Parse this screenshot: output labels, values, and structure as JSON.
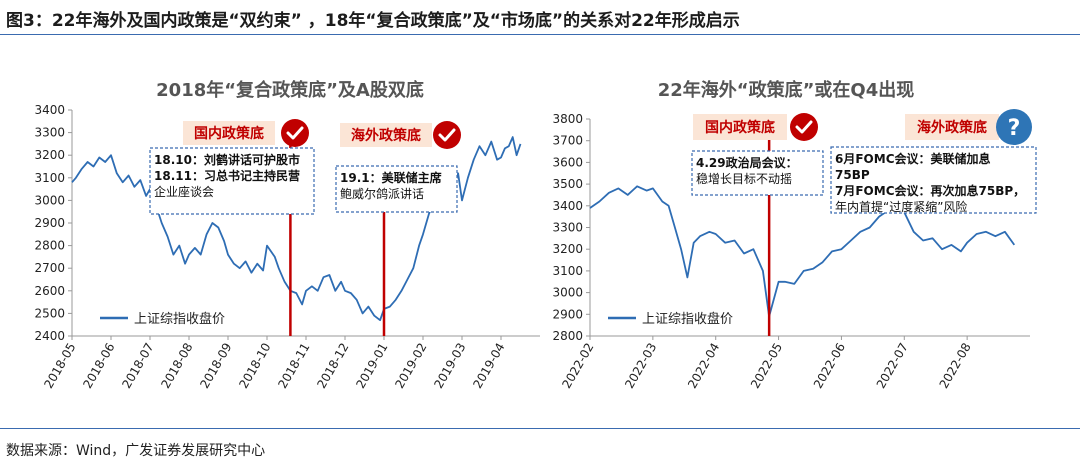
{
  "figure_title": "图3：22年海外及国内政策是“双约束” ，18年“复合政策底”及“市场底”的关系对22年形成启示",
  "source": "数据来源：Wind，广发证券发展研究中心",
  "colors": {
    "line": "#2e6db4",
    "red": "#c00000",
    "label_bg": "#fbe5d6",
    "axis": "#999999",
    "dash": "#3a6bb0",
    "q": "#2e75b6"
  },
  "chart_data": [
    {
      "type": "line",
      "title": "2018年“复合政策底”及A股双底",
      "xlabel": "",
      "ylabel": "",
      "ylim": [
        2400,
        3400
      ],
      "yticks": [
        2400,
        2500,
        2600,
        2700,
        2800,
        2900,
        3000,
        3100,
        3200,
        3300,
        3400
      ],
      "xlim": [
        0,
        12
      ],
      "x_tick_labels": [
        "2018-05",
        "2018-06",
        "2018-07",
        "2018-08",
        "2018-09",
        "2018-10",
        "2018-11",
        "2018-12",
        "2019-01",
        "2019-02",
        "2019-03",
        "2019-04"
      ],
      "series": [
        {
          "name": "上证综指收盘价",
          "x": [
            0,
            0.1,
            0.25,
            0.4,
            0.55,
            0.7,
            0.85,
            1,
            1.15,
            1.3,
            1.45,
            1.6,
            1.75,
            1.9,
            2,
            2.15,
            2.3,
            2.45,
            2.6,
            2.75,
            2.9,
            3,
            3.15,
            3.3,
            3.45,
            3.6,
            3.75,
            3.9,
            4,
            4.15,
            4.3,
            4.45,
            4.6,
            4.75,
            4.9,
            5,
            5.2,
            5.3,
            5.45,
            5.6,
            5.75,
            5.9,
            6,
            6.15,
            6.3,
            6.45,
            6.6,
            6.75,
            6.9,
            7,
            7.15,
            7.3,
            7.45,
            7.6,
            7.75,
            7.9,
            8,
            8.15,
            8.3,
            8.45,
            8.6,
            8.75,
            8.9,
            9,
            9.15,
            9.3,
            9.45,
            9.6,
            9.75,
            9.9,
            10,
            10.15,
            10.3,
            10.45,
            10.6,
            10.75,
            10.9,
            11,
            11.1,
            11.2,
            11.3,
            11.4,
            11.5
          ],
          "values": [
            3080,
            3100,
            3140,
            3170,
            3150,
            3190,
            3170,
            3200,
            3120,
            3080,
            3110,
            3060,
            3090,
            3020,
            3050,
            2980,
            2900,
            2840,
            2760,
            2800,
            2720,
            2760,
            2790,
            2760,
            2850,
            2900,
            2880,
            2820,
            2760,
            2720,
            2700,
            2730,
            2680,
            2720,
            2690,
            2800,
            2750,
            2700,
            2640,
            2600,
            2590,
            2540,
            2600,
            2620,
            2600,
            2660,
            2670,
            2600,
            2640,
            2600,
            2590,
            2560,
            2500,
            2530,
            2490,
            2470,
            2520,
            2530,
            2560,
            2600,
            2650,
            2700,
            2800,
            2850,
            2940,
            3000,
            3060,
            2960,
            3040,
            3120,
            3000,
            3100,
            3180,
            3240,
            3200,
            3260,
            3180,
            3190,
            3230,
            3240,
            3280,
            3200,
            3250
          ]
        }
      ],
      "policy_lines": [
        {
          "x": 5.6,
          "ymin": 2400,
          "ymax": 3300,
          "label": "国内政策底"
        },
        {
          "x": 8.0,
          "ymin": 2400,
          "ymax": 3100,
          "label": "海外政策底"
        }
      ],
      "annotations": [
        {
          "lines": [
            "18.10：刘鹤讲话可护股市",
            "18.11：习总书记主持民营",
            "企业座谈会"
          ]
        },
        {
          "lines": [
            "19.1：美联储主席",
            "鲍威尔鸽派讲话"
          ]
        }
      ]
    },
    {
      "type": "line",
      "title": "22年海外“政策底”或在Q4出现",
      "xlabel": "",
      "ylabel": "",
      "ylim": [
        2800,
        3800
      ],
      "yticks": [
        2800,
        2900,
        3000,
        3100,
        3200,
        3300,
        3400,
        3500,
        3600,
        3700,
        3800
      ],
      "xlim": [
        0,
        7
      ],
      "x_tick_labels": [
        "2022-02",
        "2022-03",
        "2022-04",
        "2022-05",
        "2022-06",
        "2022-07",
        "2022-08"
      ],
      "series": [
        {
          "name": "上证综指收盘价",
          "x": [
            0,
            0.15,
            0.3,
            0.45,
            0.6,
            0.75,
            0.9,
            1,
            1.15,
            1.25,
            1.35,
            1.45,
            1.55,
            1.65,
            1.75,
            1.9,
            2,
            2.15,
            2.3,
            2.45,
            2.6,
            2.75,
            2.85,
            3,
            3.1,
            3.25,
            3.4,
            3.55,
            3.7,
            3.85,
            4,
            4.15,
            4.3,
            4.45,
            4.6,
            4.75,
            4.9,
            5,
            5.15,
            5.3,
            5.45,
            5.6,
            5.75,
            5.9,
            6,
            6.15,
            6.3,
            6.45,
            6.6,
            6.75
          ],
          "values": [
            3390,
            3420,
            3460,
            3480,
            3450,
            3490,
            3470,
            3480,
            3420,
            3400,
            3300,
            3200,
            3070,
            3230,
            3260,
            3280,
            3270,
            3230,
            3240,
            3180,
            3200,
            3100,
            2890,
            3050,
            3050,
            3040,
            3100,
            3110,
            3140,
            3190,
            3200,
            3240,
            3280,
            3300,
            3350,
            3380,
            3400,
            3370,
            3280,
            3240,
            3250,
            3200,
            3220,
            3190,
            3230,
            3270,
            3280,
            3260,
            3280,
            3220
          ]
        }
      ],
      "policy_lines": [
        {
          "x": 2.85,
          "ymin": 2800,
          "ymax": 3740,
          "label": "国内政策底"
        }
      ],
      "extra_labels": [
        {
          "label": "海外政策底",
          "mark": "?"
        }
      ],
      "annotations": [
        {
          "lines": [
            "4.29政治局会议：",
            "稳增长目标不动摇"
          ]
        },
        {
          "lines": [
            "6月FOMC会议：美联储加息",
            "75BP",
            "7月FOMC会议：再次加息75BP，",
            "年内首提“过度紧缩”风险"
          ]
        }
      ]
    }
  ]
}
